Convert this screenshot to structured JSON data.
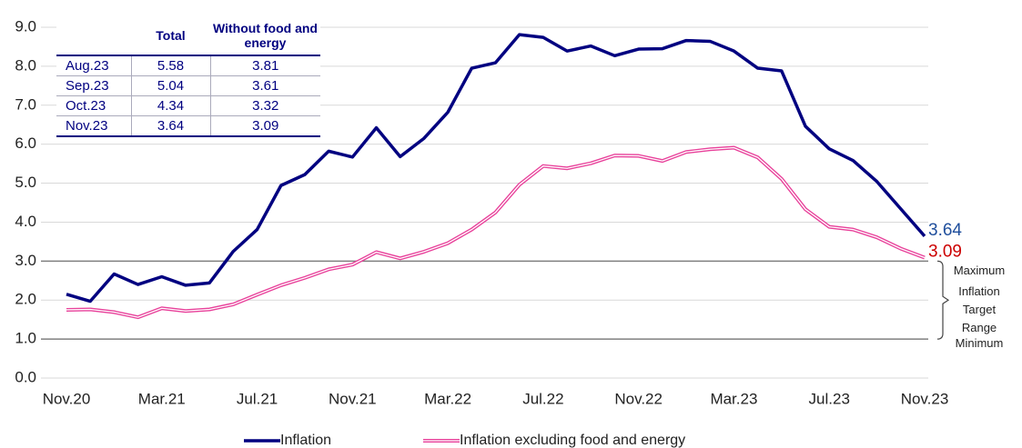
{
  "chart_data": {
    "type": "line",
    "categories": [
      "Nov.20",
      null,
      null,
      null,
      "Mar.21",
      null,
      null,
      null,
      "Jul.21",
      null,
      null,
      null,
      "Nov.21",
      null,
      null,
      null,
      "Mar.22",
      null,
      null,
      null,
      "Jul.22",
      null,
      null,
      null,
      "Nov.22",
      null,
      null,
      null,
      "Mar.23",
      null,
      null,
      null,
      "Jul.23",
      null,
      null,
      null,
      "Nov.23"
    ],
    "series": [
      {
        "name": "Inflation",
        "color": "#000080",
        "values": [
          2.15,
          1.97,
          2.67,
          2.4,
          2.6,
          2.38,
          2.44,
          3.25,
          3.81,
          4.94,
          5.22,
          5.82,
          5.67,
          6.42,
          5.68,
          6.15,
          6.82,
          7.95,
          8.09,
          8.81,
          8.74,
          8.39,
          8.52,
          8.27,
          8.44,
          8.45,
          8.66,
          8.64,
          8.39,
          7.95,
          7.88,
          6.46,
          5.88,
          5.58,
          5.04,
          4.34,
          3.64
        ],
        "end_label_color": "#1f4e9c"
      },
      {
        "name": "Inflation excluding food and energy",
        "color": "#e8409a",
        "values": [
          1.75,
          1.76,
          1.69,
          1.56,
          1.79,
          1.72,
          1.76,
          1.89,
          2.14,
          2.38,
          2.57,
          2.79,
          2.91,
          3.23,
          3.07,
          3.24,
          3.46,
          3.81,
          4.25,
          4.96,
          5.44,
          5.38,
          5.51,
          5.71,
          5.7,
          5.57,
          5.8,
          5.87,
          5.91,
          5.66,
          5.11,
          4.33,
          3.88,
          3.81,
          3.61,
          3.32,
          3.09
        ],
        "end_label_color": "#cc0000"
      }
    ],
    "ylim": [
      0,
      9
    ],
    "yticks": [
      {
        "value": 0,
        "label": "0.0"
      },
      {
        "value": 1,
        "label": "1.0"
      },
      {
        "value": 2,
        "label": "2.0"
      },
      {
        "value": 3,
        "label": "3.0"
      },
      {
        "value": 4,
        "label": "4.0"
      },
      {
        "value": 5,
        "label": "5.0"
      },
      {
        "value": 6,
        "label": "6.0"
      },
      {
        "value": 7,
        "label": "7.0"
      },
      {
        "value": 8,
        "label": "8.0"
      },
      {
        "value": 9,
        "label": "9.0"
      }
    ],
    "grid": true,
    "target": {
      "min": 1,
      "max": 3,
      "min_label": "Minimum",
      "max_label": "Maximum",
      "range_label": "Inflation Target Range"
    },
    "legend": "bottom",
    "table": {
      "header": [
        "",
        "Total",
        "Without food and energy"
      ],
      "rows": [
        [
          "Aug.23",
          5.58,
          3.81
        ],
        [
          "Sep.23",
          5.04,
          3.61
        ],
        [
          "Oct.23",
          4.34,
          3.32
        ],
        [
          "Nov.23",
          3.64,
          3.09
        ]
      ]
    }
  }
}
